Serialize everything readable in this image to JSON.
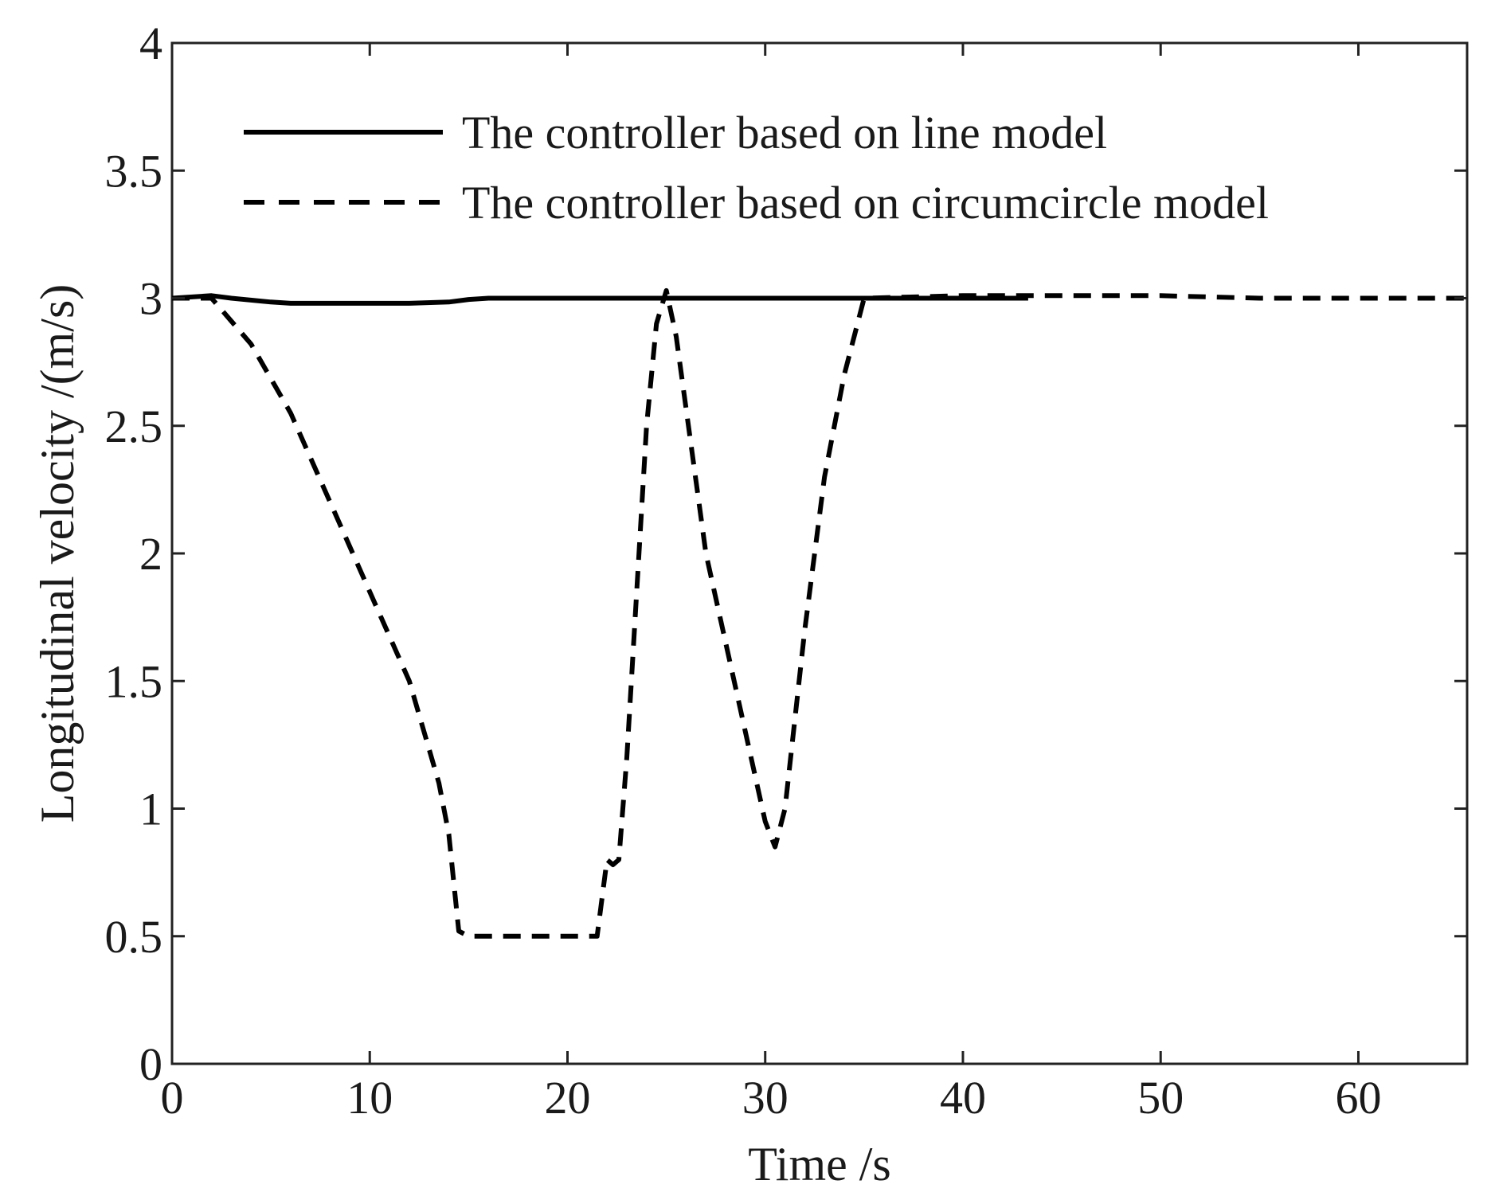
{
  "chart_data": {
    "type": "line",
    "title": "",
    "xlabel": "Time /s",
    "ylabel": "Longitudinal velocity /(m/s)",
    "xlim": [
      0,
      65.5
    ],
    "ylim": [
      0,
      4
    ],
    "xticks": [
      0,
      10,
      20,
      30,
      40,
      50,
      60
    ],
    "yticks": [
      0,
      0.5,
      1,
      1.5,
      2,
      2.5,
      3,
      3.5,
      4
    ],
    "ytick_labels": [
      "0",
      "0.5",
      "1",
      "1.5",
      "2",
      "2.5",
      "3",
      "3.5",
      "4"
    ],
    "grid": false,
    "legend_position": "top-left",
    "series": [
      {
        "name": "The controller based on line model",
        "line_style": "solid",
        "color": "#000000",
        "x": [
          0,
          2,
          3,
          5,
          6,
          8,
          10,
          12,
          14,
          15,
          16,
          20,
          25,
          30,
          35,
          40,
          43.3
        ],
        "y": [
          3.0,
          3.01,
          3.0,
          2.985,
          2.98,
          2.98,
          2.98,
          2.98,
          2.985,
          2.995,
          3.0,
          3.0,
          3.0,
          3.0,
          3.0,
          3.0,
          3.0
        ]
      },
      {
        "name": "The controller based on circumcircle model",
        "line_style": "dashed",
        "color": "#000000",
        "x": [
          0,
          2,
          4,
          6,
          8,
          10,
          12,
          13.5,
          14,
          14.5,
          15,
          16,
          18,
          20,
          21.5,
          22,
          22.3,
          22.6,
          23,
          24,
          24.5,
          25,
          25.5,
          27,
          29,
          30,
          30.5,
          31,
          32,
          33,
          34,
          35,
          40,
          45,
          50,
          55,
          60,
          65.5
        ],
        "y": [
          3.0,
          3.0,
          2.82,
          2.55,
          2.2,
          1.85,
          1.5,
          1.1,
          0.9,
          0.52,
          0.5,
          0.5,
          0.5,
          0.5,
          0.5,
          0.8,
          0.78,
          0.8,
          1.2,
          2.5,
          2.9,
          3.03,
          2.85,
          2.0,
          1.3,
          0.95,
          0.85,
          1.0,
          1.7,
          2.3,
          2.7,
          3.0,
          3.01,
          3.01,
          3.01,
          3.0,
          3.0,
          3.0
        ]
      }
    ]
  }
}
